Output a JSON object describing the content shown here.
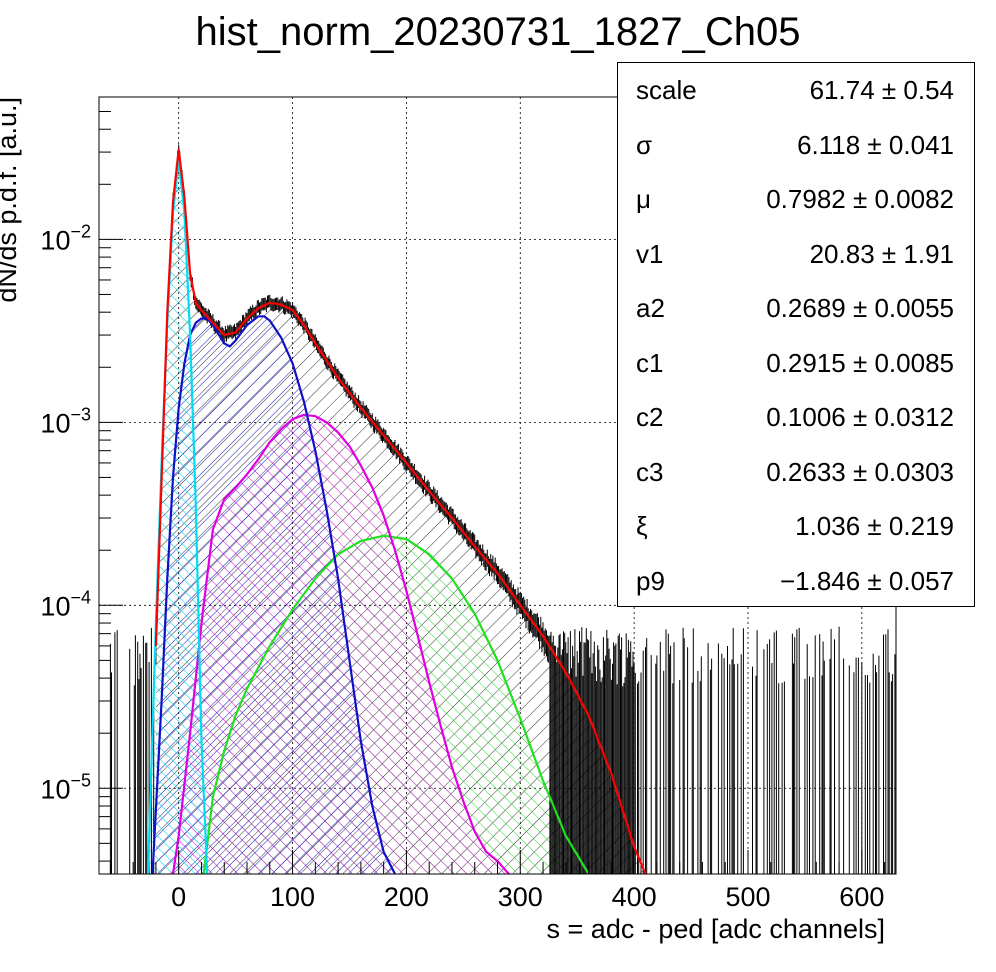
{
  "chart_data": {
    "type": "histogram-fit",
    "title": "hist_norm_20230731_1827_Ch05",
    "xlabel": "s = adc - ped [adc channels]",
    "ylabel": "dN/ds p.d.f. [a.u.]",
    "xlim": [
      -70,
      630
    ],
    "ylim": [
      3.4e-06,
      0.06
    ],
    "yscale": "log",
    "grid": true,
    "xticks": [
      0,
      100,
      200,
      300,
      400,
      500,
      600
    ],
    "yticks": [
      {
        "value": 1e-05,
        "label": "10−5"
      },
      {
        "value": 0.0001,
        "label": "10−4"
      },
      {
        "value": 0.001,
        "label": "10−3"
      },
      {
        "value": 0.01,
        "label": "10−2"
      }
    ],
    "series": [
      {
        "color": "#ff0000",
        "role": "total-fit",
        "x": [
          -20,
          -10,
          -5,
          0,
          5,
          10,
          15,
          20,
          30,
          40,
          50,
          60,
          70,
          80,
          90,
          100,
          110,
          120,
          140,
          160,
          180,
          200,
          220,
          240,
          260,
          280,
          300,
          320,
          340,
          360,
          380,
          400,
          410
        ],
        "y": [
          6e-05,
          0.004,
          0.016,
          0.031,
          0.017,
          0.0065,
          0.0045,
          0.0041,
          0.0035,
          0.003,
          0.0031,
          0.0037,
          0.0042,
          0.0045,
          0.0044,
          0.0041,
          0.0034,
          0.0027,
          0.00175,
          0.0012,
          0.00085,
          0.0006,
          0.00042,
          0.0003,
          0.00021,
          0.00015,
          0.0001,
          6.8e-05,
          4.3e-05,
          2.5e-05,
          1.2e-05,
          4.8e-06,
          3.4e-06
        ]
      },
      {
        "color": "#00dcf0",
        "role": "pedestal",
        "x": [
          -27,
          -20,
          -15,
          -10,
          -5,
          0,
          5,
          10,
          15,
          20,
          25
        ],
        "y": [
          3.4e-06,
          8e-05,
          0.0006,
          0.0035,
          0.014,
          0.027,
          0.014,
          0.003,
          0.00035,
          1.8e-05,
          3.4e-06
        ]
      },
      {
        "color": "#1010c8",
        "role": "1-pe",
        "x": [
          -23,
          -15,
          -10,
          -5,
          0,
          5,
          10,
          15,
          20,
          25,
          30,
          40,
          45,
          50,
          60,
          70,
          75,
          80,
          90,
          100,
          110,
          120,
          130,
          140,
          150,
          160,
          170,
          180,
          190
        ],
        "y": [
          3.4e-06,
          3e-05,
          0.00014,
          0.0005,
          0.0012,
          0.0021,
          0.003,
          0.0035,
          0.0037,
          0.0037,
          0.0034,
          0.0027,
          0.0026,
          0.0028,
          0.0034,
          0.0038,
          0.0038,
          0.0036,
          0.0029,
          0.0021,
          0.0013,
          0.0007,
          0.00033,
          0.00014,
          5e-05,
          1.8e-05,
          8e-06,
          4.5e-06,
          3.4e-06
        ]
      },
      {
        "color": "#e000e0",
        "role": "2-pe",
        "x": [
          -5,
          0,
          10,
          20,
          30,
          40,
          50,
          60,
          70,
          80,
          90,
          100,
          110,
          120,
          130,
          140,
          150,
          160,
          170,
          180,
          190,
          200,
          210,
          220,
          230,
          240,
          250,
          260,
          270,
          280,
          290
        ],
        "y": [
          3.4e-06,
          5.5e-06,
          2e-05,
          8e-05,
          0.00026,
          0.00038,
          0.00044,
          0.00052,
          0.00063,
          0.00078,
          0.00092,
          0.00104,
          0.0011,
          0.00108,
          0.001,
          0.00088,
          0.00074,
          0.00058,
          0.00044,
          0.00031,
          0.0002,
          0.00012,
          6.8e-05,
          3.8e-05,
          2.2e-05,
          1.3e-05,
          8.5e-06,
          5.8e-06,
          4.5e-06,
          4e-06,
          3.4e-06
        ]
      },
      {
        "color": "#20e020",
        "role": "3-pe",
        "x": [
          22,
          30,
          40,
          50,
          60,
          80,
          100,
          120,
          140,
          160,
          180,
          200,
          220,
          240,
          260,
          280,
          300,
          320,
          340,
          360
        ],
        "y": [
          3.4e-06,
          9e-06,
          1.6e-05,
          2.5e-05,
          3.5e-05,
          6e-05,
          9.5e-05,
          0.00014,
          0.00019,
          0.000225,
          0.00024,
          0.00023,
          0.00019,
          0.00014,
          9e-05,
          5e-05,
          2.4e-05,
          1.1e-05,
          5.5e-06,
          3.4e-06
        ]
      }
    ]
  },
  "stats": {
    "rows": [
      {
        "name": "scale",
        "value": "61.74",
        "err": "0.54"
      },
      {
        "name": "σ",
        "value": "6.118",
        "err": "0.041"
      },
      {
        "name": "μ",
        "value": "0.7982",
        "err": "0.0082"
      },
      {
        "name": "v1",
        "value": "20.83",
        "err": "1.91"
      },
      {
        "name": "a2",
        "value": "0.2689",
        "err": "0.0055"
      },
      {
        "name": "c1",
        "value": "0.2915",
        "err": "0.0085"
      },
      {
        "name": "c2",
        "value": "0.1006",
        "err": "0.0312"
      },
      {
        "name": "c3",
        "value": "0.2633",
        "err": "0.0303"
      },
      {
        "name": "ξ",
        "value": "1.036",
        "err": "0.219"
      },
      {
        "name": "p9",
        "value": "−1.846",
        "err": "0.057"
      }
    ]
  }
}
